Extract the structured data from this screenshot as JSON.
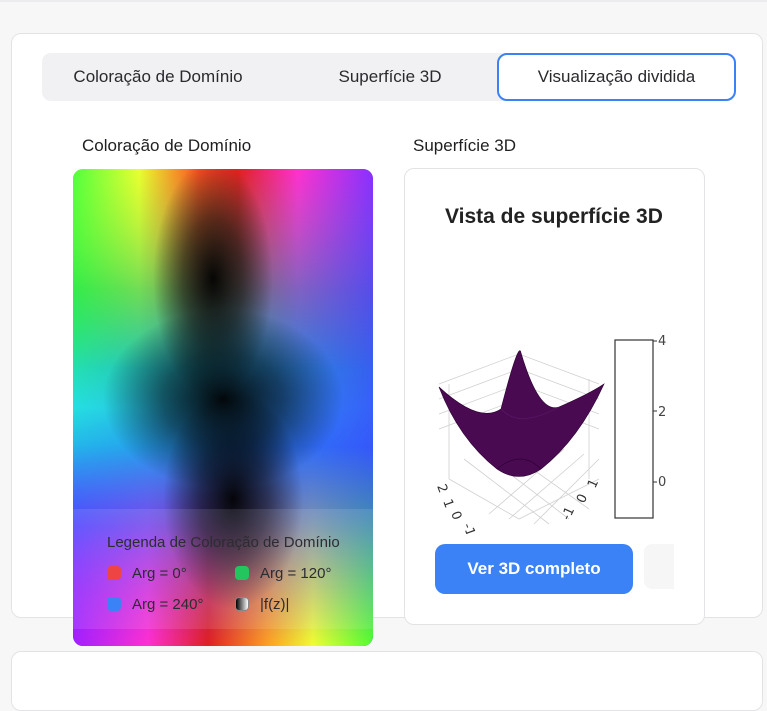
{
  "tabs": [
    {
      "label": "Coloração de Domínio",
      "active": false
    },
    {
      "label": "Superfície 3D",
      "active": false
    },
    {
      "label": "Visualização dividida",
      "active": true
    }
  ],
  "split": {
    "left_label": "Coloração de Domínio",
    "right_label": "Superfície 3D"
  },
  "legend": {
    "title": "Legenda de Coloração de Domínio",
    "items": [
      {
        "label": "Arg = 0°",
        "color": "#ef4444"
      },
      {
        "label": "Arg = 120°",
        "color": "#22c55e"
      },
      {
        "label": "Arg = 240°",
        "color": "#3b82f6"
      },
      {
        "label": "|f(z)|",
        "color": "gradient-black-white"
      }
    ]
  },
  "surface": {
    "title": "Vista de superfície 3D",
    "colorbar_ticks": [
      "4",
      "2",
      "0"
    ],
    "axis_tick_labels": [
      "2",
      "1",
      "0",
      "-1",
      "-1",
      "0",
      "1"
    ],
    "surface_color": "#4a0a52",
    "primary_button": "Ver 3D completo"
  },
  "colors": {
    "accent": "#3b82f6"
  }
}
